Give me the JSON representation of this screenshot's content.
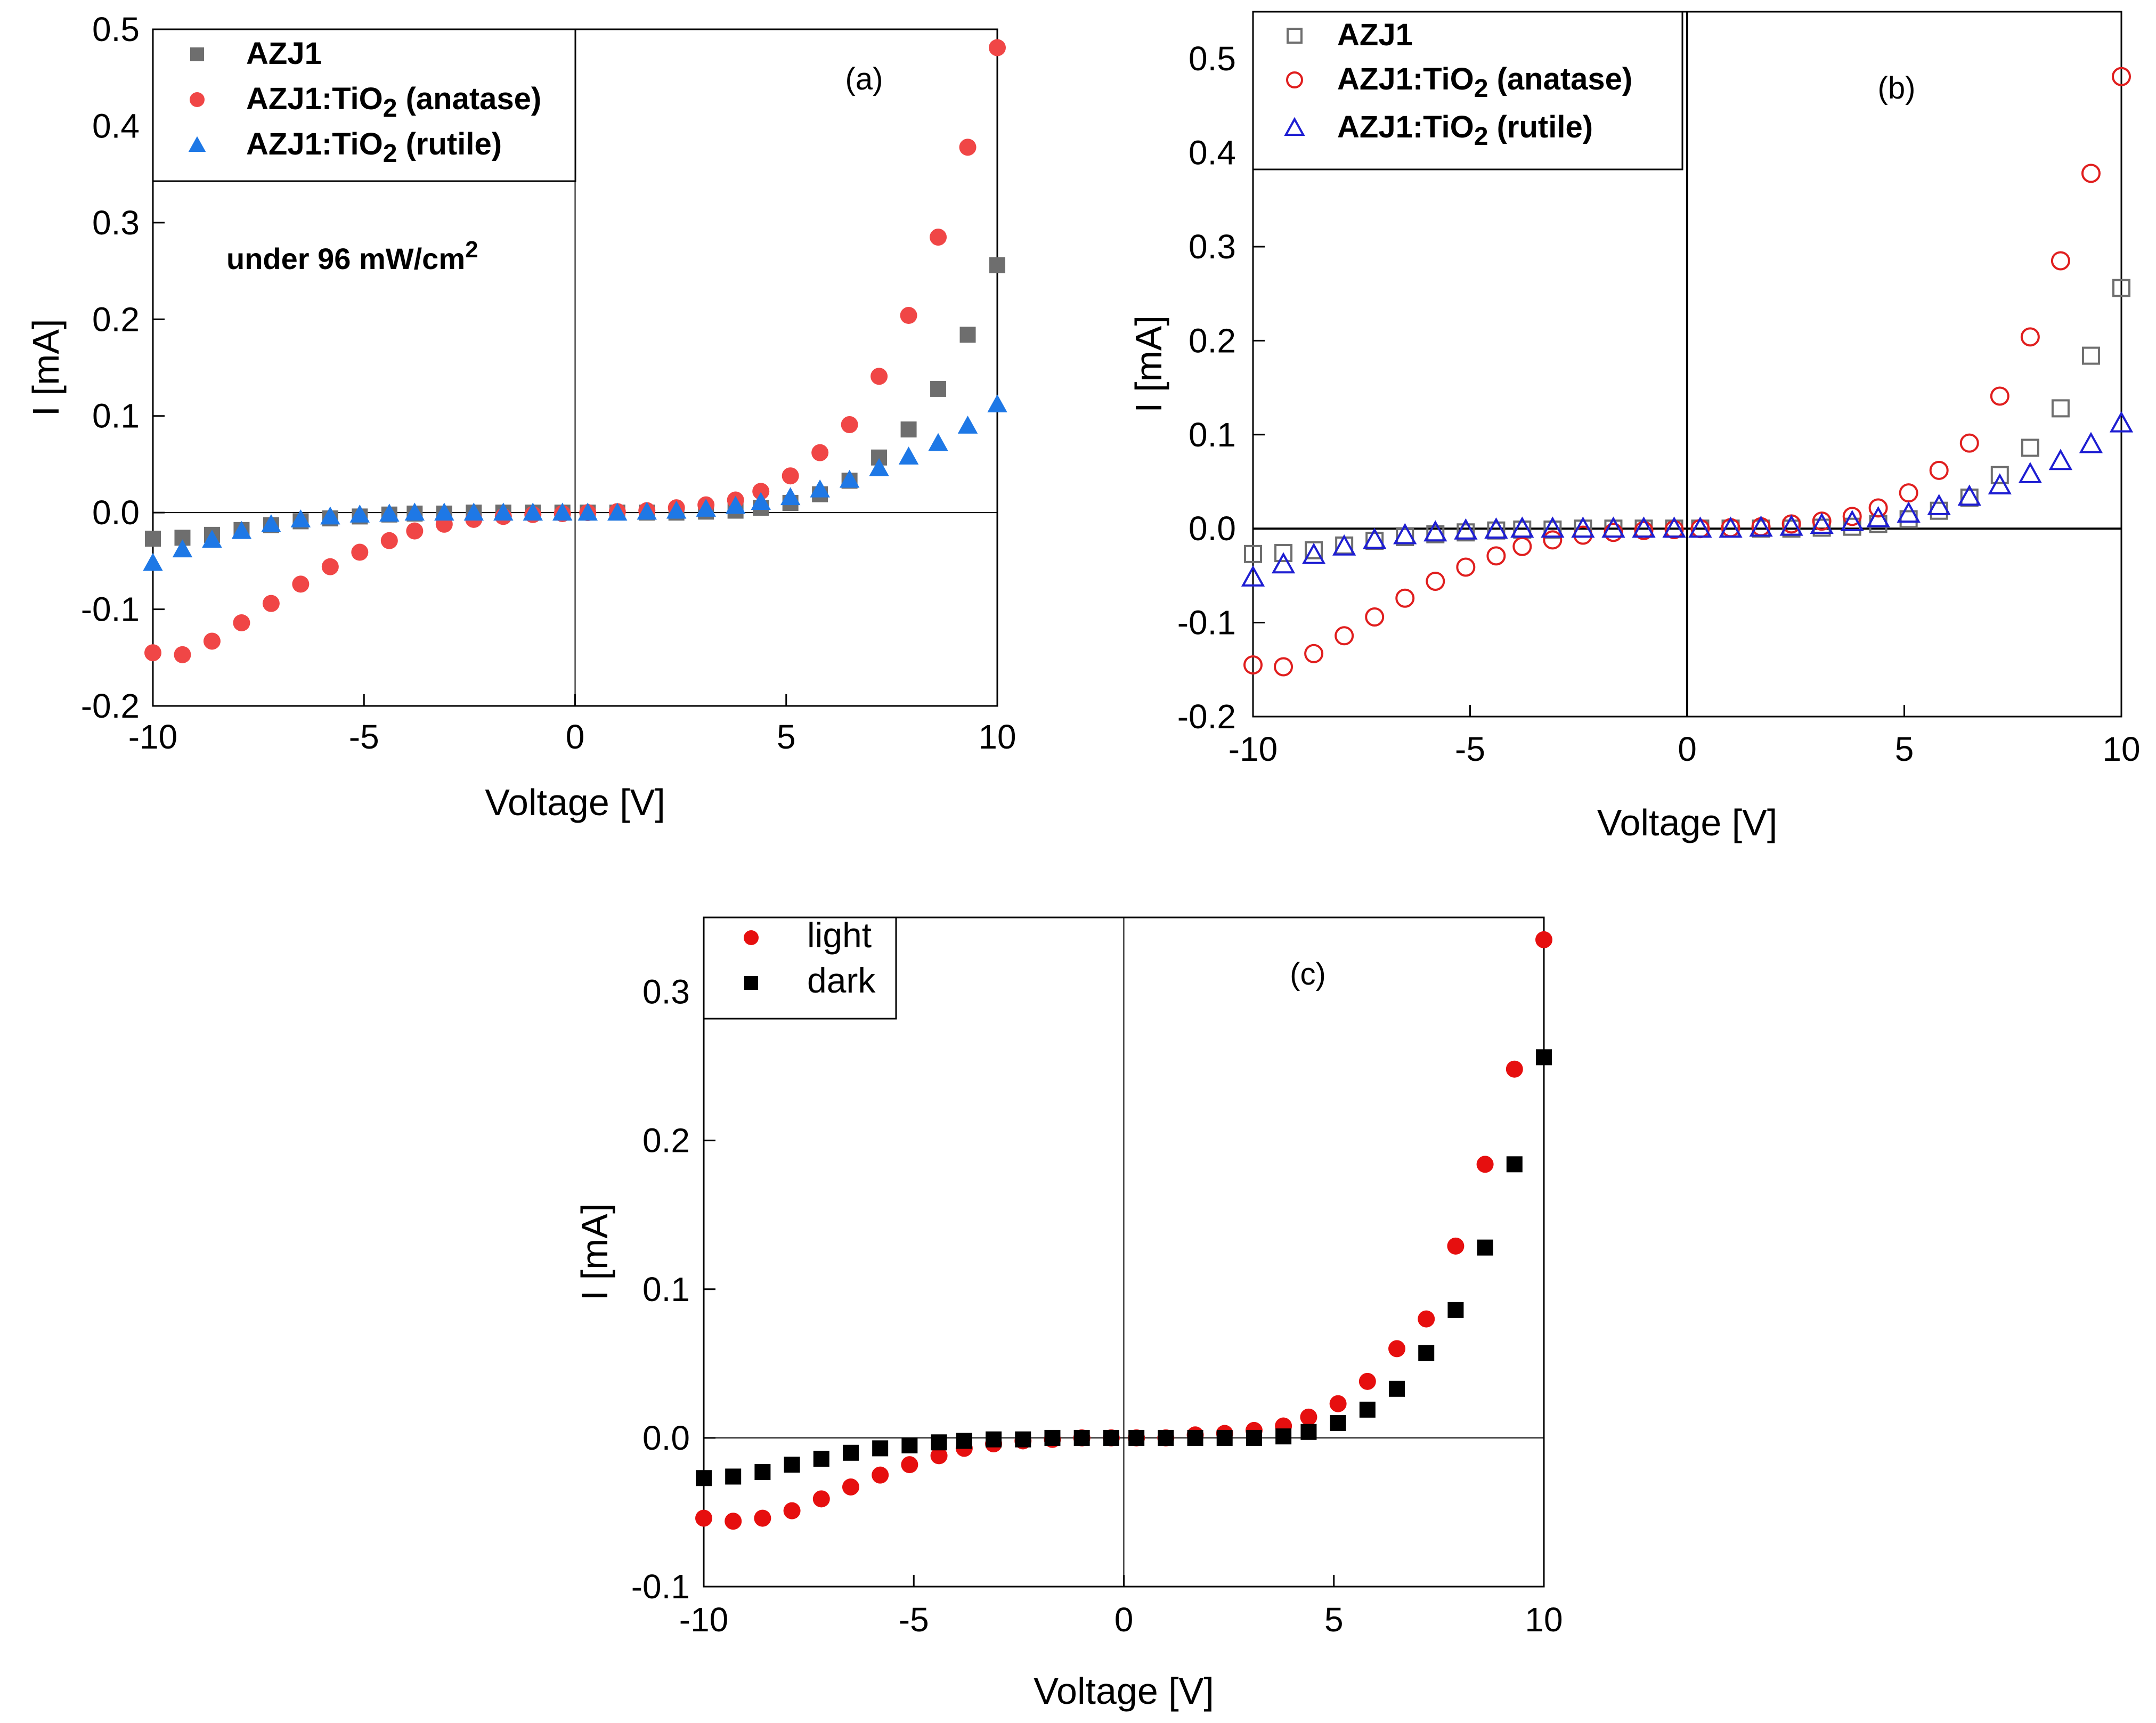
{
  "chart_data": [
    {
      "type": "scatter",
      "panel_label": "(a)",
      "annotation": {
        "text": "under 96 mW/cm",
        "superscript": "2"
      },
      "xlabel": "Voltage [V]",
      "ylabel": "I [mA]",
      "xlim": [
        -10,
        10
      ],
      "ylim": [
        -0.2,
        0.5
      ],
      "xticks": [
        "-10",
        "-5",
        "0",
        "5",
        "10"
      ],
      "yticks": [
        "-0.2",
        "-0.1",
        "0.0",
        "0.1",
        "0.2",
        "0.3",
        "0.4",
        "0.5"
      ],
      "marker_style": "filled",
      "legend_position": "top-left",
      "series": [
        {
          "legend": "AZJ1",
          "marker": "square",
          "color": "#6e6e6e",
          "x": [
            -10,
            -9.3,
            -8.6,
            -7.9,
            -7.2,
            -6.5,
            -5.8,
            -5.1,
            -4.4,
            -3.8,
            -3.1,
            -2.4,
            -1.7,
            -1,
            -0.3,
            0.3,
            1,
            1.7,
            2.4,
            3.1,
            3.8,
            4.4,
            5.1,
            5.8,
            6.5,
            7.2,
            7.9,
            8.6,
            9.3,
            10
          ],
          "y": [
            -0.027,
            -0.026,
            -0.023,
            -0.018,
            -0.013,
            -0.009,
            -0.006,
            -0.004,
            -0.002,
            -0.001,
            -0.001,
            0,
            0,
            0,
            0,
            0,
            0,
            0,
            0,
            0.001,
            0.002,
            0.005,
            0.01,
            0.019,
            0.033,
            0.057,
            0.086,
            0.128,
            0.184,
            0.256
          ]
        },
        {
          "legend": "AZJ1:TiO",
          "subscript": "2",
          "suffix": " (anatase)",
          "marker": "circle",
          "color": "#f04646",
          "x": [
            -10,
            -9.3,
            -8.6,
            -7.9,
            -7.2,
            -6.5,
            -5.8,
            -5.1,
            -4.4,
            -3.8,
            -3.1,
            -2.4,
            -1.7,
            -1,
            -0.3,
            0.3,
            1,
            1.7,
            2.4,
            3.1,
            3.8,
            4.4,
            5.1,
            5.8,
            6.5,
            7.2,
            7.9,
            8.6,
            9.3,
            10
          ],
          "y": [
            -0.145,
            -0.147,
            -0.133,
            -0.114,
            -0.094,
            -0.074,
            -0.056,
            -0.041,
            -0.029,
            -0.019,
            -0.012,
            -0.007,
            -0.004,
            -0.002,
            -0.001,
            0,
            0.001,
            0.002,
            0.005,
            0.008,
            0.013,
            0.022,
            0.038,
            0.062,
            0.091,
            0.141,
            0.204,
            0.285,
            0.378,
            0.481
          ]
        },
        {
          "legend": "AZJ1:TiO",
          "subscript": "2",
          "suffix": " (rutile)",
          "marker": "triangle",
          "color": "#1e78e6",
          "x": [
            -10,
            -9.3,
            -8.6,
            -7.9,
            -7.2,
            -6.5,
            -5.8,
            -5.1,
            -4.4,
            -3.8,
            -3.1,
            -2.4,
            -1.7,
            -1,
            -0.3,
            0.3,
            1,
            1.7,
            2.4,
            3.1,
            3.8,
            4.4,
            5.1,
            5.8,
            6.5,
            7.2,
            7.9,
            8.6,
            9.3,
            10
          ],
          "y": [
            -0.052,
            -0.038,
            -0.028,
            -0.019,
            -0.012,
            -0.007,
            -0.004,
            -0.002,
            -0.001,
            0,
            0,
            0,
            0,
            0,
            0,
            0,
            0,
            0.001,
            0.002,
            0.004,
            0.007,
            0.011,
            0.016,
            0.024,
            0.034,
            0.046,
            0.058,
            0.072,
            0.09,
            0.112
          ]
        }
      ]
    },
    {
      "type": "scatter",
      "panel_label": "(b)",
      "xlabel": "Voltage [V]",
      "ylabel": "I [mA]",
      "xlim": [
        -10,
        10
      ],
      "ylim": [
        -0.2,
        0.55
      ],
      "xticks": [
        "-10",
        "-5",
        "0",
        "5",
        "10"
      ],
      "yticks": [
        "-0.2",
        "-0.1",
        "0.0",
        "0.1",
        "0.2",
        "0.3",
        "0.4",
        "0.5"
      ],
      "marker_style": "hollow",
      "legend_position": "top-left",
      "series": [
        {
          "legend": "AZJ1",
          "marker": "square",
          "color": "#6e6e6e",
          "x": [
            -10,
            -9.3,
            -8.6,
            -7.9,
            -7.2,
            -6.5,
            -5.8,
            -5.1,
            -4.4,
            -3.8,
            -3.1,
            -2.4,
            -1.7,
            -1,
            -0.3,
            0.3,
            1,
            1.7,
            2.4,
            3.1,
            3.8,
            4.4,
            5.1,
            5.8,
            6.5,
            7.2,
            7.9,
            8.6,
            9.3,
            10
          ],
          "y": [
            -0.027,
            -0.026,
            -0.023,
            -0.018,
            -0.013,
            -0.009,
            -0.006,
            -0.004,
            -0.002,
            -0.001,
            -0.001,
            0,
            0,
            0,
            0,
            0,
            0,
            0,
            0,
            0.001,
            0.002,
            0.005,
            0.01,
            0.019,
            0.033,
            0.057,
            0.086,
            0.128,
            0.184,
            0.256
          ]
        },
        {
          "legend": "AZJ1:TiO",
          "subscript": "2",
          "suffix": " (anatase)",
          "marker": "circle",
          "color": "#e01e1e",
          "x": [
            -10,
            -9.3,
            -8.6,
            -7.9,
            -7.2,
            -6.5,
            -5.8,
            -5.1,
            -4.4,
            -3.8,
            -3.1,
            -2.4,
            -1.7,
            -1,
            -0.3,
            0.3,
            1,
            1.7,
            2.4,
            3.1,
            3.8,
            4.4,
            5.1,
            5.8,
            6.5,
            7.2,
            7.9,
            8.6,
            9.3,
            10
          ],
          "y": [
            -0.145,
            -0.147,
            -0.133,
            -0.114,
            -0.094,
            -0.074,
            -0.056,
            -0.041,
            -0.029,
            -0.019,
            -0.012,
            -0.007,
            -0.004,
            -0.002,
            -0.001,
            0,
            0.001,
            0.002,
            0.005,
            0.008,
            0.013,
            0.022,
            0.038,
            0.062,
            0.091,
            0.141,
            0.204,
            0.285,
            0.378,
            0.481
          ]
        },
        {
          "legend": "AZJ1:TiO",
          "subscript": "2",
          "suffix": " (rutile)",
          "marker": "triangle",
          "color": "#1e1ed2",
          "x": [
            -10,
            -9.3,
            -8.6,
            -7.9,
            -7.2,
            -6.5,
            -5.8,
            -5.1,
            -4.4,
            -3.8,
            -3.1,
            -2.4,
            -1.7,
            -1,
            -0.3,
            0.3,
            1,
            1.7,
            2.4,
            3.1,
            3.8,
            4.4,
            5.1,
            5.8,
            6.5,
            7.2,
            7.9,
            8.6,
            9.3,
            10
          ],
          "y": [
            -0.052,
            -0.038,
            -0.028,
            -0.019,
            -0.012,
            -0.007,
            -0.004,
            -0.002,
            -0.001,
            0,
            0,
            0,
            0,
            0,
            0,
            0,
            0,
            0.001,
            0.002,
            0.004,
            0.007,
            0.011,
            0.016,
            0.024,
            0.034,
            0.046,
            0.058,
            0.072,
            0.09,
            0.112
          ]
        }
      ]
    },
    {
      "type": "scatter",
      "panel_label": "(c)",
      "xlabel": "Voltage [V]",
      "ylabel": "I [mA]",
      "xlim": [
        -10,
        10
      ],
      "ylim": [
        -0.1,
        0.35
      ],
      "xticks": [
        "-10",
        "-5",
        "0",
        "5",
        "10"
      ],
      "yticks": [
        "-0.1",
        "0.0",
        "0.1",
        "0.2",
        "0.3"
      ],
      "marker_style": "filled",
      "legend_position": "top-left",
      "series": [
        {
          "legend": "light",
          "marker": "circle",
          "color": "#e60f0f",
          "x": [
            -10,
            -9.3,
            -8.6,
            -7.9,
            -7.2,
            -6.5,
            -5.8,
            -5.1,
            -4.4,
            -3.8,
            -3.1,
            -2.4,
            -1.7,
            -1,
            -0.3,
            0.3,
            1,
            1.7,
            2.4,
            3.1,
            3.8,
            4.4,
            5.1,
            5.8,
            6.5,
            7.2,
            7.9,
            8.6,
            9.3,
            10
          ],
          "y": [
            -0.054,
            -0.056,
            -0.054,
            -0.049,
            -0.041,
            -0.033,
            -0.025,
            -0.018,
            -0.012,
            -0.007,
            -0.004,
            -0.002,
            -0.001,
            0,
            0,
            0,
            0,
            0.002,
            0.003,
            0.005,
            0.008,
            0.014,
            0.023,
            0.038,
            0.06,
            0.08,
            0.129,
            0.184,
            0.248,
            0.335
          ]
        },
        {
          "legend": "dark",
          "marker": "square",
          "color": "#000000",
          "x": [
            -10,
            -9.3,
            -8.6,
            -7.9,
            -7.2,
            -6.5,
            -5.8,
            -5.1,
            -4.4,
            -3.8,
            -3.1,
            -2.4,
            -1.7,
            -1,
            -0.3,
            0.3,
            1,
            1.7,
            2.4,
            3.1,
            3.8,
            4.4,
            5.1,
            5.8,
            6.5,
            7.2,
            7.9,
            8.6,
            9.3,
            10
          ],
          "y": [
            -0.027,
            -0.026,
            -0.023,
            -0.018,
            -0.014,
            -0.01,
            -0.007,
            -0.005,
            -0.003,
            -0.002,
            -0.001,
            -0.001,
            0,
            0,
            0,
            0,
            0,
            0,
            0,
            0,
            0.001,
            0.004,
            0.01,
            0.019,
            0.033,
            0.057,
            0.086,
            0.128,
            0.184,
            0.256
          ]
        }
      ]
    }
  ]
}
